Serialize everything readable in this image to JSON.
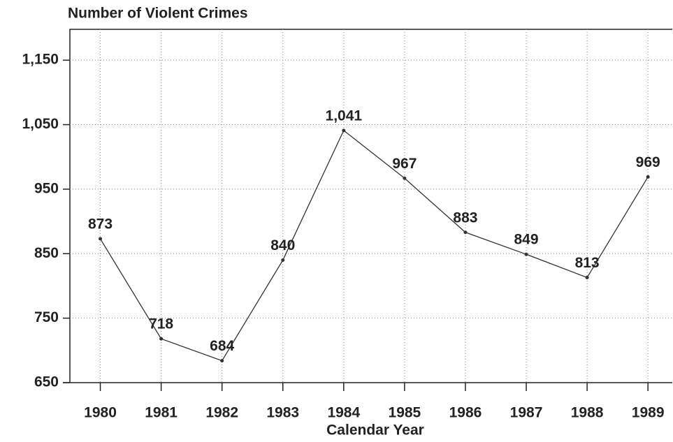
{
  "chart_data": {
    "type": "line",
    "title": "Number of Violent Crimes",
    "x_label": "Calendar Year",
    "x": [
      1980,
      1981,
      1982,
      1983,
      1984,
      1985,
      1986,
      1987,
      1988,
      1989
    ],
    "series": [
      {
        "color": "#333333",
        "values": [
          873,
          718,
          684,
          840,
          1041,
          967,
          883,
          849,
          813,
          969
        ],
        "value_labels": [
          "873",
          "718",
          "684",
          "840",
          "1,041",
          "967",
          "883",
          "849",
          "813",
          "969"
        ]
      }
    ],
    "xlim": [
      1979.5,
      1989.4
    ],
    "xticks": [
      1980,
      1981,
      1982,
      1983,
      1984,
      1985,
      1986,
      1987,
      1988,
      1989
    ],
    "ylim": [
      650,
      1200
    ],
    "yticks": [
      650,
      750,
      850,
      950,
      {
        "value": 1050,
        "label": "1,050"
      },
      {
        "value": 1150,
        "label": "1,150"
      }
    ],
    "grid": true
  }
}
